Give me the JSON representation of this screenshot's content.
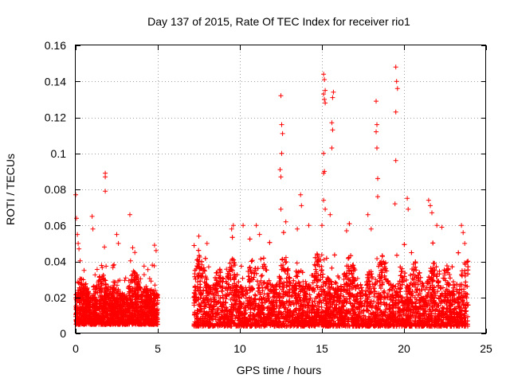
{
  "chart_data": {
    "type": "scatter",
    "title": "Day 137 of 2015, Rate Of TEC Index for receiver rio1",
    "xlabel": "GPS time / hours",
    "ylabel": "ROTI / TECUs",
    "xlim": [
      0,
      25
    ],
    "ylim": [
      0,
      0.16
    ],
    "xticks": [
      0,
      5,
      10,
      15,
      20,
      25
    ],
    "xtick_labels": [
      "0",
      "5",
      "10",
      "15",
      "20",
      "25"
    ],
    "yticks": [
      0,
      0.02,
      0.04,
      0.06,
      0.08,
      0.1,
      0.12,
      0.14,
      0.16
    ],
    "ytick_labels": [
      "0",
      "0.02",
      "0.04",
      "0.06",
      "0.08",
      "0.1",
      "0.12",
      "0.14",
      "0.16"
    ],
    "grid": true,
    "marker": "+",
    "color": "#ff0000",
    "data_gap": [
      5.0,
      7.2
    ],
    "series": [
      {
        "name": "rio1 ROTI",
        "dense_segments": [
          {
            "x_range": [
              0.0,
              5.0
            ],
            "y_typical": [
              0.005,
              0.035
            ]
          },
          {
            "x_range": [
              7.2,
              23.9
            ],
            "y_typical": [
              0.004,
              0.045
            ]
          }
        ],
        "points": [
          [
            0.0,
            0.077
          ],
          [
            0.05,
            0.064
          ],
          [
            0.1,
            0.055
          ],
          [
            0.15,
            0.05
          ],
          [
            0.2,
            0.047
          ],
          [
            1.0,
            0.065
          ],
          [
            1.05,
            0.058
          ],
          [
            1.8,
            0.089
          ],
          [
            1.8,
            0.087
          ],
          [
            1.8,
            0.079
          ],
          [
            1.75,
            0.048
          ],
          [
            2.5,
            0.055
          ],
          [
            2.6,
            0.05
          ],
          [
            3.3,
            0.066
          ],
          [
            3.6,
            0.045
          ],
          [
            4.8,
            0.049
          ],
          [
            4.9,
            0.046
          ],
          [
            7.5,
            0.054
          ],
          [
            8.0,
            0.05
          ],
          [
            9.5,
            0.058
          ],
          [
            9.6,
            0.06
          ],
          [
            10.2,
            0.06
          ],
          [
            11.0,
            0.06
          ],
          [
            11.2,
            0.055
          ],
          [
            12.5,
            0.132
          ],
          [
            12.55,
            0.116
          ],
          [
            12.6,
            0.111
          ],
          [
            12.55,
            0.1
          ],
          [
            12.45,
            0.091
          ],
          [
            12.5,
            0.087
          ],
          [
            12.5,
            0.069
          ],
          [
            12.8,
            0.062
          ],
          [
            13.5,
            0.058
          ],
          [
            13.7,
            0.077
          ],
          [
            13.75,
            0.071
          ],
          [
            14.2,
            0.06
          ],
          [
            15.1,
            0.144
          ],
          [
            15.15,
            0.141
          ],
          [
            15.2,
            0.135
          ],
          [
            15.1,
            0.133
          ],
          [
            15.15,
            0.13
          ],
          [
            15.2,
            0.128
          ],
          [
            15.1,
            0.1
          ],
          [
            15.15,
            0.09
          ],
          [
            15.1,
            0.089
          ],
          [
            15.1,
            0.074
          ],
          [
            15.2,
            0.069
          ],
          [
            15.0,
            0.06
          ],
          [
            15.7,
            0.134
          ],
          [
            15.65,
            0.131
          ],
          [
            15.6,
            0.117
          ],
          [
            15.65,
            0.113
          ],
          [
            15.6,
            0.103
          ],
          [
            15.5,
            0.066
          ],
          [
            16.5,
            0.057
          ],
          [
            17.8,
            0.066
          ],
          [
            18.0,
            0.058
          ],
          [
            18.3,
            0.129
          ],
          [
            18.35,
            0.116
          ],
          [
            18.3,
            0.112
          ],
          [
            18.35,
            0.103
          ],
          [
            18.4,
            0.086
          ],
          [
            18.4,
            0.076
          ],
          [
            19.5,
            0.148
          ],
          [
            19.55,
            0.14
          ],
          [
            19.6,
            0.136
          ],
          [
            19.5,
            0.123
          ],
          [
            19.5,
            0.096
          ],
          [
            19.45,
            0.072
          ],
          [
            20.2,
            0.075
          ],
          [
            20.25,
            0.069
          ],
          [
            21.5,
            0.074
          ],
          [
            21.6,
            0.071
          ],
          [
            21.7,
            0.067
          ],
          [
            22.0,
            0.06
          ],
          [
            22.3,
            0.059
          ],
          [
            23.5,
            0.06
          ],
          [
            23.6,
            0.056
          ],
          [
            23.7,
            0.05
          ]
        ]
      }
    ]
  }
}
